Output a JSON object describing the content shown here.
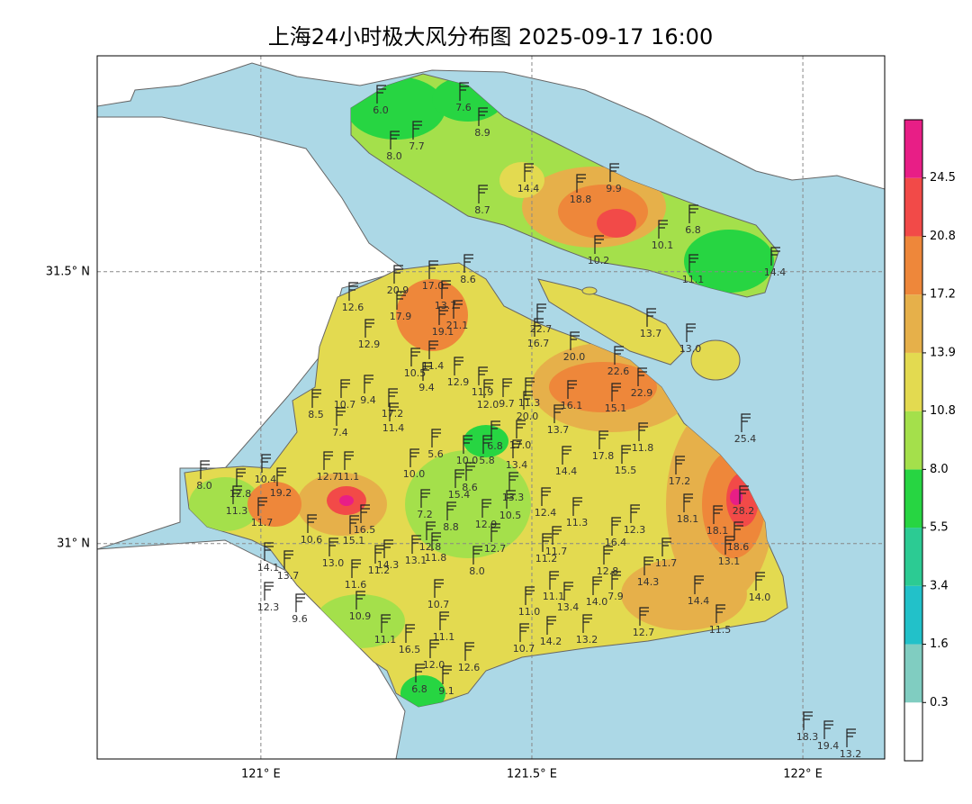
{
  "title": "上海24小时极大风分布图 2025-09-17 16:00",
  "map": {
    "xlim": [
      120.698,
      122.151
    ],
    "ylim": [
      30.604,
      31.897
    ],
    "xticks": [
      {
        "value": 121,
        "label": "121° E"
      },
      {
        "value": 121.5,
        "label": "121.5° E"
      },
      {
        "value": 122,
        "label": "122° E"
      }
    ],
    "yticks": [
      {
        "value": 31,
        "label": "31° N"
      },
      {
        "value": 31.5,
        "label": "31.5° N"
      }
    ],
    "colorbar": {
      "ticks": [
        {
          "value": 0.3,
          "label": "0.3"
        },
        {
          "value": 1.6,
          "label": "1.6"
        },
        {
          "value": 3.4,
          "label": "3.4"
        },
        {
          "value": 5.5,
          "label": "5.5"
        },
        {
          "value": 8.0,
          "label": "8.0"
        },
        {
          "value": 10.8,
          "label": "10.8"
        },
        {
          "value": 13.9,
          "label": "13.9"
        },
        {
          "value": 17.2,
          "label": "17.2"
        },
        {
          "value": 20.8,
          "label": "20.8"
        },
        {
          "value": 24.5,
          "label": "24.5"
        }
      ],
      "colors": [
        "#ffffff",
        "#80cdc1",
        "#22c1c9",
        "#2ccb93",
        "#27d542",
        "#a4e04b",
        "#e3da50",
        "#e6b04a",
        "#ee873a",
        "#f24a48",
        "#e81e86"
      ]
    },
    "stations": [
      "6.0",
      "7.6",
      "8.9",
      "7.7",
      "8.0",
      "14.4",
      "18.8",
      "9.9",
      "8.7",
      "10.1",
      "6.8",
      "10.2",
      "11.1",
      "14.4",
      "20.9",
      "17.0",
      "8.6",
      "12.6",
      "17.9",
      "13.7",
      "21.1",
      "19.1",
      "22.7",
      "16.7",
      "13.7",
      "12.9",
      "20.0",
      "13.0",
      "10.5",
      "11.4",
      "22.6",
      "22.9",
      "9.4",
      "12.9",
      "11.9",
      "9.4",
      "10.7",
      "17.2",
      "12.0",
      "9.7",
      "11.3",
      "16.1",
      "15.1",
      "8.5",
      "11.4",
      "20.0",
      "13.7",
      "7.4",
      "25.4",
      "6.8",
      "17.0",
      "11.8",
      "5.6",
      "10.0",
      "5.8",
      "13.4",
      "17.8",
      "15.5",
      "14.4",
      "12.7",
      "11.1",
      "10.0",
      "10.4",
      "8.0",
      "12.8",
      "19.2",
      "8.6",
      "15.4",
      "13.3",
      "17.2",
      "28.2",
      "11.3",
      "7.2",
      "10.5",
      "12.4",
      "18.1",
      "11.7",
      "16.5",
      "8.8",
      "12.9",
      "11.3",
      "12.3",
      "18.1",
      "10.6",
      "15.1",
      "12.8",
      "12.7",
      "16.4",
      "18.6",
      "14.1",
      "13.0",
      "14.3",
      "13.1",
      "11.8",
      "11.7",
      "11.2",
      "13.1",
      "13.7",
      "11.2",
      "8.0",
      "12.8",
      "11.7",
      "14.3",
      "11.6",
      "11.1",
      "13.4",
      "14.0",
      "7.9",
      "14.4",
      "14.0",
      "12.3",
      "9.6",
      "10.9",
      "10.7",
      "11.0",
      "11.1",
      "12.7",
      "11.5",
      "14.2",
      "13.2",
      "11.1",
      "16.5",
      "10.7",
      "12.0",
      "12.6",
      "6.8",
      "9.1",
      "18.3",
      "19.4",
      "13.2"
    ]
  }
}
